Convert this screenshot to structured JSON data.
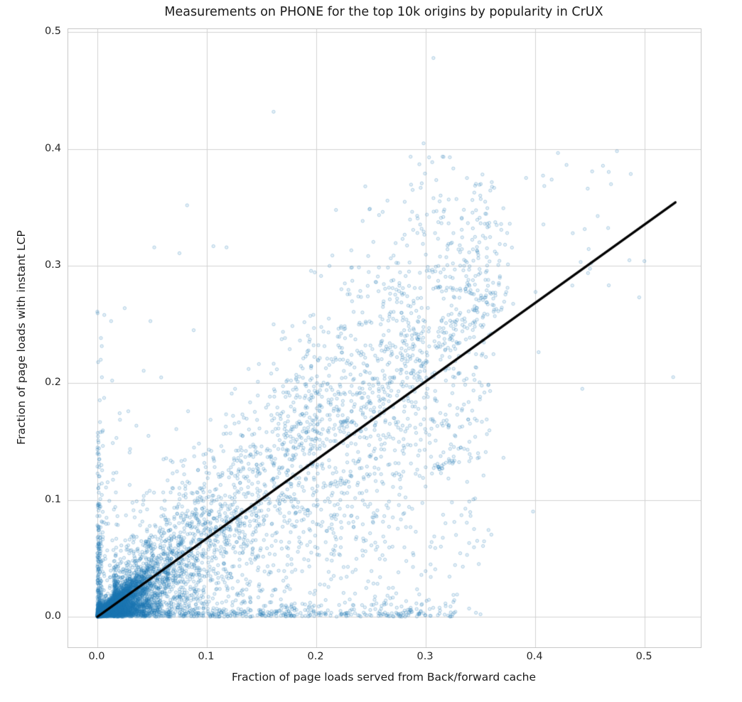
{
  "chart_data": {
    "type": "scatter",
    "title": "Measurements on PHONE for the top 10k origins by popularity in CrUX",
    "xlabel": "Fraction of page loads served from Back/forward cache",
    "ylabel": "Fraction of page loads with instant LCP",
    "xlim": [
      -0.0266,
      0.5512
    ],
    "ylim": [
      -0.0261,
      0.5027
    ],
    "xticks": [
      0.0,
      0.1,
      0.2,
      0.3,
      0.4,
      0.5
    ],
    "yticks": [
      0.0,
      0.1,
      0.2,
      0.3,
      0.4,
      0.5
    ],
    "xtick_labels": [
      "0.0",
      "0.1",
      "0.2",
      "0.3",
      "0.4",
      "0.5"
    ],
    "ytick_labels": [
      "0.0",
      "0.1",
      "0.2",
      "0.3",
      "0.4",
      "0.5"
    ],
    "grid": true,
    "legend": false,
    "n_points_approx": 8200,
    "colors": {
      "point": "#1f77b4",
      "point_fill_alpha": 0.1,
      "point_edge_alpha": 0.3,
      "grid": "#d2d2d2",
      "spine": "#c8c8c8",
      "regression_line": "#000000",
      "text": "#262626",
      "background": "#ffffff"
    },
    "marker": {
      "radius": 2.15,
      "edge_width": 1.0
    },
    "regression_line": {
      "x1": 0.0,
      "y1": 0.0,
      "x2": 0.528,
      "y2": 0.3545,
      "width": 3.4
    },
    "point_generator": {
      "seed": 1337,
      "clusters": [
        {
          "name": "origin-core-wedge",
          "type": "wedge",
          "n": 4200,
          "x_exp_scale": 0.016,
          "x_max": 0.4,
          "slope_max": 0.92,
          "t_pow": 1.15,
          "y_noise_exp": 0.0022
        },
        {
          "name": "diagonal-belt",
          "type": "belt",
          "n": 3000,
          "x0": 0.015,
          "xr": 0.345,
          "pw": 1.7,
          "slope": 0.66,
          "slope_sd": 0.33,
          "y_sd": 0.016,
          "y_max": 0.4
        },
        {
          "name": "upper-fan",
          "type": "fan",
          "n": 430,
          "x0": 0.16,
          "xr": 0.22,
          "slope": 0.7,
          "spread": 0.052,
          "y_max": 0.375
        },
        {
          "name": "zero-x-column",
          "type": "column",
          "n": 240,
          "x_sd": 0.0022,
          "y_exp_scale": 0.048,
          "y_max": 0.262
        },
        {
          "name": "left-low-fan",
          "type": "strip",
          "n": 260,
          "x0": 0.004,
          "xr": 0.095,
          "pw": 1.5,
          "y_exp_scale": 0.055,
          "y_max": 0.26
        },
        {
          "name": "bottom-fringe",
          "type": "strip",
          "n": 420,
          "x0": 0.03,
          "xr": 0.3,
          "pw": 1.4,
          "y_exp_scale": 0.006,
          "y_max": 0.035
        },
        {
          "name": "far-right-upper",
          "type": "box",
          "n": 38,
          "x0": 0.33,
          "xr": 0.17,
          "a": 0.5,
          "b": 0.55,
          "y_max": 0.4
        },
        {
          "name": "dark-clump-1",
          "type": "clump",
          "n": 12,
          "cx": 0.3115,
          "cy": 0.1265,
          "sd": 0.0032
        },
        {
          "name": "dark-clump-2",
          "type": "clump",
          "n": 8,
          "cx": 0.3235,
          "cy": 0.13,
          "sd": 0.003
        }
      ],
      "explicit_points": [
        [
          0.307,
          0.478
        ],
        [
          0.161,
          0.432
        ],
        [
          0.298,
          0.405
        ],
        [
          0.303,
          0.393
        ],
        [
          0.082,
          0.352
        ],
        [
          0.218,
          0.348
        ],
        [
          0.249,
          0.349
        ],
        [
          0.265,
          0.356
        ],
        [
          0.452,
          0.381
        ],
        [
          0.415,
          0.374
        ],
        [
          0.486,
          0.305
        ],
        [
          0.526,
          0.205
        ],
        [
          0.443,
          0.195
        ],
        [
          0.398,
          0.09
        ],
        [
          0.371,
          0.136
        ],
        [
          0.0,
          0.261
        ],
        [
          0.025,
          0.264
        ],
        [
          0.052,
          0.316
        ],
        [
          0.075,
          0.311
        ],
        [
          0.106,
          0.317
        ],
        [
          0.118,
          0.316
        ],
        [
          0.358,
          0.337
        ],
        [
          0.369,
          0.331
        ],
        [
          0.345,
          0.325
        ],
        [
          0.301,
          0.344
        ],
        [
          0.316,
          0.342
        ]
      ]
    }
  }
}
